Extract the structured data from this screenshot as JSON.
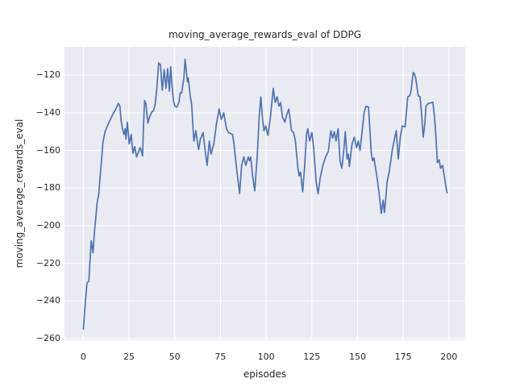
{
  "chart_data": {
    "type": "line",
    "title": "moving_average_rewards_eval of DDPG",
    "xlabel": "episodes",
    "ylabel": "moving_average_rewards_eval",
    "x_ticks": [
      0,
      25,
      50,
      75,
      100,
      125,
      150,
      175,
      200
    ],
    "x_tick_labels": [
      "0",
      "25",
      "50",
      "75",
      "100",
      "125",
      "150",
      "175",
      "200"
    ],
    "y_ticks": [
      -120,
      -140,
      -160,
      -180,
      -200,
      -220,
      -240,
      -260
    ],
    "y_tick_labels": [
      "−120",
      "−140",
      "−160",
      "−180",
      "−200",
      "−220",
      "−240",
      "−260"
    ],
    "xlim": [
      -10.3,
      208.9
    ],
    "ylim": [
      -260.9,
      -104.9
    ],
    "grid": true,
    "legend_position": "none",
    "colors": {
      "axes_background": "#EAEAF2",
      "figure_background": "#FFFFFF",
      "grid": "#FFFFFF",
      "text": "#262626",
      "line": "#4C72B0"
    },
    "series": [
      {
        "name": "moving_average_rewards_eval",
        "color": "#4C72B0",
        "points": [
          [
            0,
            -255
          ],
          [
            1,
            -242
          ],
          [
            2,
            -230.5
          ],
          [
            3,
            -229.5
          ],
          [
            4.3,
            -208
          ],
          [
            5.3,
            -214.5
          ],
          [
            6,
            -204
          ],
          [
            6.8,
            -196
          ],
          [
            7.5,
            -188
          ],
          [
            8.5,
            -183
          ],
          [
            9,
            -176
          ],
          [
            10,
            -165
          ],
          [
            10.7,
            -156
          ],
          [
            11.9,
            -150
          ],
          [
            13.4,
            -146.5
          ],
          [
            14.8,
            -143.5
          ],
          [
            16.3,
            -140.5
          ],
          [
            17.8,
            -138
          ],
          [
            19.2,
            -135
          ],
          [
            20,
            -136.5
          ],
          [
            20.7,
            -144.5
          ],
          [
            21.4,
            -148.5
          ],
          [
            22.2,
            -151.5
          ],
          [
            22.9,
            -148.5
          ],
          [
            23.3,
            -154
          ],
          [
            24.1,
            -145
          ],
          [
            25.1,
            -156.5
          ],
          [
            26.2,
            -151.5
          ],
          [
            27.1,
            -161.5
          ],
          [
            28.1,
            -158
          ],
          [
            29.1,
            -163.5
          ],
          [
            30.3,
            -160.5
          ],
          [
            31,
            -158.5
          ],
          [
            31.8,
            -160.5
          ],
          [
            32.4,
            -163
          ],
          [
            32.9,
            -148
          ],
          [
            33.5,
            -133.5
          ],
          [
            34.2,
            -135
          ],
          [
            35.3,
            -145.5
          ],
          [
            36.3,
            -142
          ],
          [
            37.5,
            -139.5
          ],
          [
            38.3,
            -139
          ],
          [
            39.3,
            -135.5
          ],
          [
            40.2,
            -127
          ],
          [
            41.2,
            -113.5
          ],
          [
            42.2,
            -114.5
          ],
          [
            43.2,
            -128
          ],
          [
            44.2,
            -117
          ],
          [
            45.2,
            -127
          ],
          [
            46.1,
            -116.5
          ],
          [
            47.1,
            -128.5
          ],
          [
            47.8,
            -115.5
          ],
          [
            48.6,
            -126
          ],
          [
            49.3,
            -133.5
          ],
          [
            50.1,
            -136.5
          ],
          [
            51.2,
            -137
          ],
          [
            52.3,
            -134.5
          ],
          [
            53,
            -129.5
          ],
          [
            53.8,
            -129.5
          ],
          [
            55,
            -121.5
          ],
          [
            55.7,
            -111.5
          ],
          [
            56.4,
            -118
          ],
          [
            56.9,
            -123.5
          ],
          [
            57.4,
            -121.5
          ],
          [
            58.4,
            -130.5
          ],
          [
            59.3,
            -136
          ],
          [
            60,
            -148
          ],
          [
            60.5,
            -155
          ],
          [
            61.6,
            -149.5
          ],
          [
            62.5,
            -156.5
          ],
          [
            63.1,
            -159.5
          ],
          [
            64,
            -154
          ],
          [
            65.5,
            -150.5
          ],
          [
            66.9,
            -162
          ],
          [
            67.7,
            -168
          ],
          [
            68.9,
            -155
          ],
          [
            69.9,
            -162
          ],
          [
            71.4,
            -156.5
          ],
          [
            72.9,
            -145.5
          ],
          [
            74.3,
            -138
          ],
          [
            75.5,
            -143.5
          ],
          [
            76.8,
            -140
          ],
          [
            78.3,
            -148.5
          ],
          [
            79.4,
            -150.5
          ],
          [
            80.5,
            -151
          ],
          [
            81.6,
            -151.5
          ],
          [
            82.4,
            -156.5
          ],
          [
            83.8,
            -169.5
          ],
          [
            85.5,
            -183
          ],
          [
            86.6,
            -168
          ],
          [
            87.8,
            -163.5
          ],
          [
            88.9,
            -168
          ],
          [
            90.2,
            -163.5
          ],
          [
            90.9,
            -165.5
          ],
          [
            91.6,
            -163.5
          ],
          [
            92.6,
            -173.5
          ],
          [
            93.8,
            -181.5
          ],
          [
            95.2,
            -162
          ],
          [
            96.2,
            -142
          ],
          [
            97.1,
            -131.5
          ],
          [
            98.1,
            -144
          ],
          [
            98.8,
            -149.5
          ],
          [
            99.8,
            -147
          ],
          [
            101,
            -152
          ],
          [
            102.4,
            -142
          ],
          [
            103.9,
            -127
          ],
          [
            105,
            -134.5
          ],
          [
            106,
            -131.5
          ],
          [
            107,
            -136.5
          ],
          [
            107.9,
            -134.5
          ],
          [
            108.9,
            -142
          ],
          [
            110.3,
            -145
          ],
          [
            111.3,
            -141
          ],
          [
            112.4,
            -138
          ],
          [
            113.9,
            -149.5
          ],
          [
            115,
            -150.5
          ],
          [
            116,
            -155
          ],
          [
            117.4,
            -169.5
          ],
          [
            118.1,
            -173.5
          ],
          [
            118.8,
            -171.5
          ],
          [
            120,
            -182
          ],
          [
            121,
            -169.5
          ],
          [
            122.1,
            -151.5
          ],
          [
            122.8,
            -148.5
          ],
          [
            123.8,
            -155
          ],
          [
            125,
            -150.5
          ],
          [
            126,
            -158.5
          ],
          [
            127.4,
            -177
          ],
          [
            128.4,
            -183
          ],
          [
            129.5,
            -175
          ],
          [
            131,
            -168
          ],
          [
            132.5,
            -163.5
          ],
          [
            134,
            -160.5
          ],
          [
            135.4,
            -149.5
          ],
          [
            136.4,
            -153.5
          ],
          [
            137.3,
            -150
          ],
          [
            138.2,
            -155
          ],
          [
            139.4,
            -148.5
          ],
          [
            140.4,
            -165.5
          ],
          [
            141.4,
            -169.5
          ],
          [
            142.6,
            -158.5
          ],
          [
            143.3,
            -150
          ],
          [
            144.3,
            -164.5
          ],
          [
            145,
            -162
          ],
          [
            145.5,
            -168.5
          ],
          [
            147,
            -156.5
          ],
          [
            148.2,
            -153
          ],
          [
            149.5,
            -158.5
          ],
          [
            150.4,
            -155
          ],
          [
            151.4,
            -160
          ],
          [
            152.5,
            -150
          ],
          [
            153.6,
            -140
          ],
          [
            154.6,
            -136.5
          ],
          [
            156,
            -137
          ],
          [
            157.5,
            -161.5
          ],
          [
            158.2,
            -165.5
          ],
          [
            159,
            -164
          ],
          [
            159.7,
            -168.5
          ],
          [
            160.7,
            -174.5
          ],
          [
            161.9,
            -183.5
          ],
          [
            163,
            -193.5
          ],
          [
            164,
            -186.5
          ],
          [
            164.7,
            -193
          ],
          [
            165.5,
            -185
          ],
          [
            166.1,
            -177
          ],
          [
            167.3,
            -171.5
          ],
          [
            169,
            -160
          ],
          [
            170.4,
            -153
          ],
          [
            171.2,
            -149.5
          ],
          [
            172.3,
            -164.5
          ],
          [
            173.4,
            -153
          ],
          [
            174.5,
            -147
          ],
          [
            176,
            -147.5
          ],
          [
            177.5,
            -131.5
          ],
          [
            178.5,
            -131
          ],
          [
            179.2,
            -128.5
          ],
          [
            180.5,
            -118.5
          ],
          [
            181.2,
            -119.5
          ],
          [
            181.8,
            -121.5
          ],
          [
            182.5,
            -126
          ],
          [
            183.2,
            -131
          ],
          [
            184.2,
            -131.5
          ],
          [
            185,
            -140
          ],
          [
            185.9,
            -153
          ],
          [
            186.8,
            -146
          ],
          [
            187.4,
            -136.5
          ],
          [
            188.8,
            -135
          ],
          [
            190,
            -134.8
          ],
          [
            191.2,
            -134.3
          ],
          [
            192.2,
            -143
          ],
          [
            192.9,
            -153
          ],
          [
            193.7,
            -166.5
          ],
          [
            194.7,
            -165
          ],
          [
            195.4,
            -169.5
          ],
          [
            196.5,
            -168
          ],
          [
            197.6,
            -174.5
          ],
          [
            198.8,
            -182
          ],
          [
            199,
            -182.5
          ]
        ]
      }
    ]
  }
}
